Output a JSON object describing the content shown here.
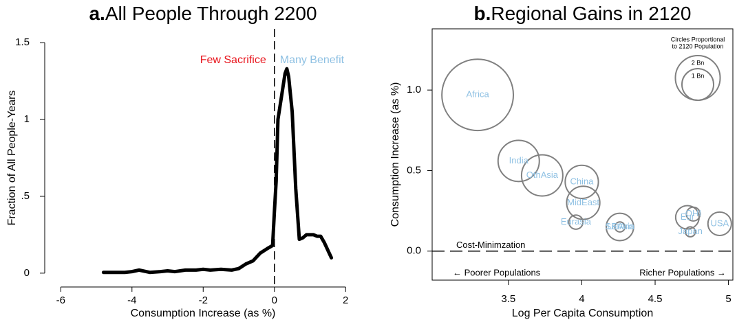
{
  "chart_data": [
    {
      "type": "line",
      "panel": "a.",
      "title": "All People Through 2200",
      "xlabel": "Consumption Increase (as %)",
      "ylabel": "Fraction of All People-Years",
      "x": [
        -4.8,
        -4.5,
        -4.2,
        -4.0,
        -3.8,
        -3.5,
        -3.2,
        -3.0,
        -2.8,
        -2.5,
        -2.2,
        -2.0,
        -1.8,
        -1.5,
        -1.2,
        -1.0,
        -0.8,
        -0.6,
        -0.4,
        -0.2,
        -0.05,
        0,
        0.05,
        0.1,
        0.2,
        0.3,
        0.35,
        0.4,
        0.5,
        0.6,
        0.7,
        0.8,
        0.9,
        1.0,
        1.1,
        1.2,
        1.3,
        1.4,
        1.5,
        1.6
      ],
      "values": [
        0.005,
        0.005,
        0.005,
        0.01,
        0.02,
        0.005,
        0.01,
        0.015,
        0.01,
        0.02,
        0.02,
        0.025,
        0.02,
        0.025,
        0.02,
        0.03,
        0.06,
        0.08,
        0.13,
        0.16,
        0.18,
        0.4,
        0.6,
        1.0,
        1.15,
        1.3,
        1.33,
        1.28,
        1.05,
        0.55,
        0.22,
        0.23,
        0.25,
        0.25,
        0.25,
        0.24,
        0.24,
        0.2,
        0.15,
        0.1
      ],
      "color": "#000000",
      "xlim": [
        -6.45,
        2.44
      ],
      "ylim": [
        -0.09,
        1.59
      ],
      "xticks": [
        -6,
        -4,
        -2,
        0,
        2
      ],
      "yticks": [
        0,
        {
          "value": 0.5,
          "label": ".5"
        },
        1,
        1.5
      ],
      "vline": 0,
      "annotations": [
        {
          "text": "Few Sacrifice",
          "color": "#e8141c"
        },
        {
          "text": "Many Benefit",
          "color": "#8fc1e3"
        }
      ]
    },
    {
      "type": "scatter",
      "panel": "b.",
      "title": "Regional Gains in 2120",
      "xlabel": "Log Per Capita Consumption",
      "ylabel": "Consumption Increase (as %)",
      "labels": [
        "Africa",
        "India",
        "OthAsia",
        "China",
        "MidEast",
        "Eurasia",
        "LatAm",
        "SEAsia",
        "Eur",
        "OHI",
        "Japan",
        "USA"
      ],
      "x": [
        3.29,
        3.57,
        3.73,
        4.0,
        4.01,
        3.96,
        4.26,
        4.26,
        4.72,
        4.76,
        4.74,
        4.94
      ],
      "values": [
        0.97,
        0.56,
        0.47,
        0.43,
        0.3,
        0.18,
        0.15,
        0.15,
        0.21,
        0.23,
        0.12,
        0.17
      ],
      "sizes": [
        5.1,
        1.7,
        1.7,
        1.1,
        1.1,
        0.2,
        0.75,
        0.1,
        0.55,
        0.19,
        0.1,
        0.55
      ],
      "color": "#808080",
      "label_color": "#8fc1e3",
      "xlim": [
        2.98,
        5.03
      ],
      "ylim": [
        -0.18,
        1.38
      ],
      "xticks": [
        3.5,
        4,
        4.5,
        5
      ],
      "yticks": [
        {
          "value": 0,
          "label": "0.0"
        },
        {
          "value": 0.5,
          "label": "0.5"
        },
        {
          "value": 1,
          "label": "1.0"
        }
      ],
      "hline": 0,
      "hline_label": "Cost-Minimzation",
      "x_notes": [
        "←  Poorer Populations",
        "Richer Populations  →"
      ],
      "size_legend_title": [
        "Circles Proportional",
        "to 2120 Population"
      ],
      "size_legend": [
        {
          "value": 2,
          "label": "2 Bn"
        },
        {
          "value": 1,
          "label": "1 Bn"
        }
      ]
    }
  ]
}
